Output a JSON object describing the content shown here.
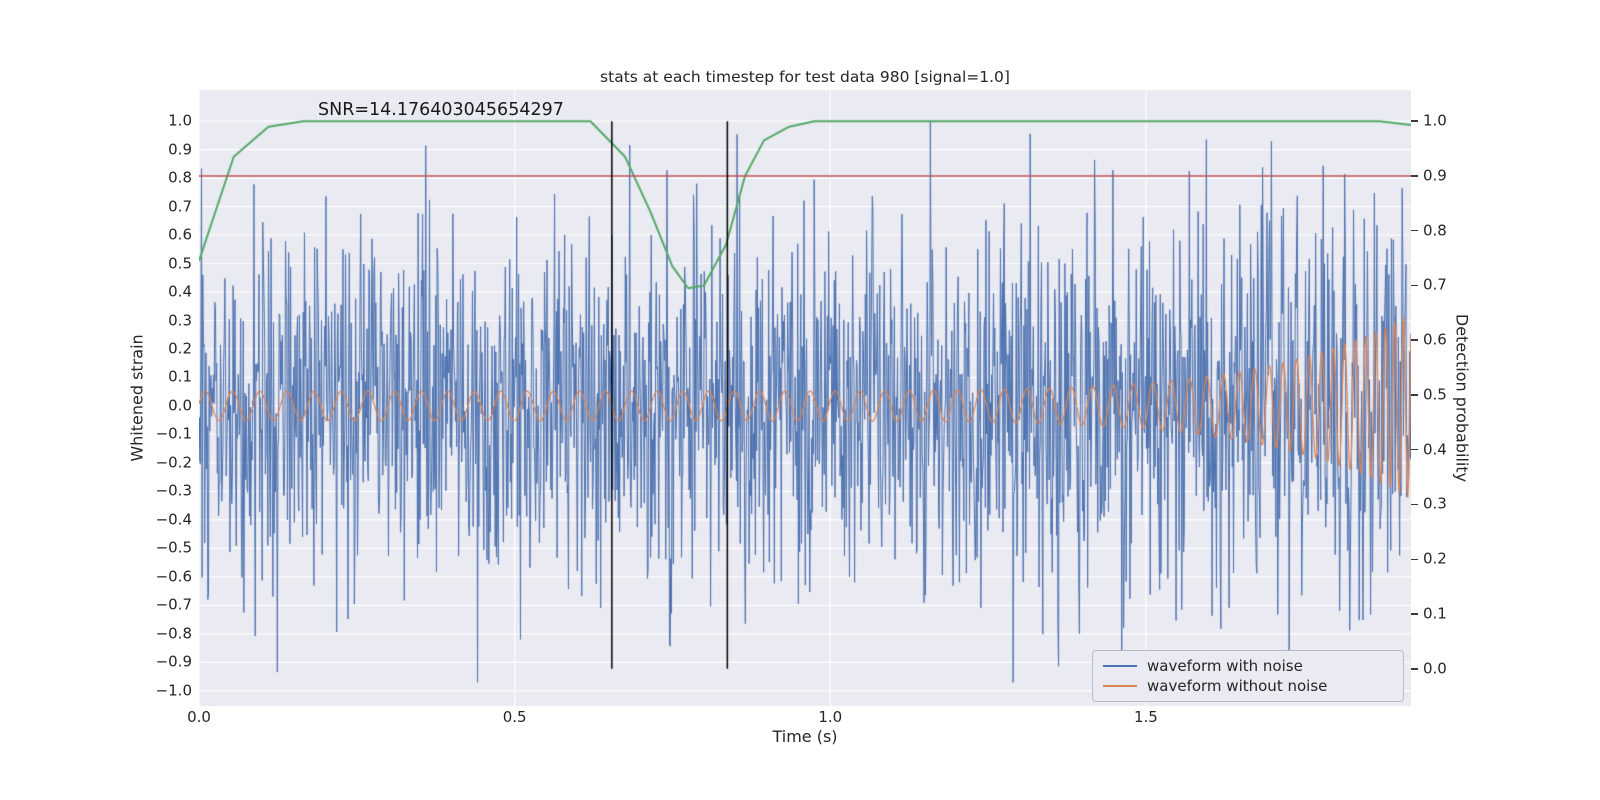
{
  "chart_data": {
    "type": "line",
    "title": "stats at each timestep for test data 980 [signal=1.0]",
    "xlabel": "Time (s)",
    "ylabel_left": "Whitened strain",
    "ylabel_right": "Detection probability",
    "annotation": {
      "text": "SNR=14.176403045654297",
      "t": 0.19,
      "strain": 1.0
    },
    "x_range": [
      0,
      1.92
    ],
    "left_ylim": [
      -1.053,
      1.109
    ],
    "right_ylim": [
      -0.068,
      1.057
    ],
    "x_ticks": {
      "values": [
        0.0,
        0.5,
        1.0,
        1.5
      ],
      "labels": [
        "0.0",
        "0.5",
        "1.0",
        "1.5"
      ]
    },
    "left_ticks": {
      "values": [
        1.0,
        0.9,
        0.8,
        0.7,
        0.6,
        0.5,
        0.4,
        0.3,
        0.2,
        0.1,
        0.0,
        -0.1,
        -0.2,
        -0.3,
        -0.4,
        -0.5,
        -0.6,
        -0.7,
        -0.8,
        -0.9,
        -1.0
      ],
      "labels": [
        "1.0",
        "0.9",
        "0.8",
        "0.7",
        "0.6",
        "0.5",
        "0.4",
        "0.3",
        "0.2",
        "0.1",
        "0.0",
        "−0.1",
        "−0.2",
        "−0.3",
        "−0.4",
        "−0.5",
        "−0.6",
        "−0.7",
        "−0.8",
        "−0.9",
        "−1.0"
      ]
    },
    "right_ticks": {
      "values": [
        1.0,
        0.9,
        0.8,
        0.7,
        0.6,
        0.5,
        0.4,
        0.3,
        0.2,
        0.1,
        0.0
      ],
      "labels": [
        "1.0",
        "0.9",
        "0.8",
        "0.7",
        "0.6",
        "0.5",
        "0.4",
        "0.3",
        "0.2",
        "0.1",
        "0.0"
      ]
    },
    "grid": {
      "color": "#ffffff",
      "on": true,
      "horizontal_axis": "left"
    },
    "colors": {
      "noise_waveform": "#4C72B0",
      "clean_waveform": "#DD8452",
      "detection_probability": "#55A868",
      "threshold": "#C44E52",
      "vline": "#000000",
      "axes_background": "#EAEAF2",
      "text": "#262626"
    },
    "threshold": {
      "axis": "right",
      "value": 0.9
    },
    "vlines": [
      0.654,
      0.837
    ],
    "detection_probability": {
      "axis": "right",
      "points": [
        [
          0.0,
          0.745
        ],
        [
          0.055,
          0.935
        ],
        [
          0.11,
          0.99
        ],
        [
          0.165,
          1.0
        ],
        [
          0.62,
          1.0
        ],
        [
          0.675,
          0.935
        ],
        [
          0.715,
          0.835
        ],
        [
          0.75,
          0.735
        ],
        [
          0.775,
          0.695
        ],
        [
          0.8,
          0.7
        ],
        [
          0.835,
          0.775
        ],
        [
          0.865,
          0.9
        ],
        [
          0.895,
          0.965
        ],
        [
          0.935,
          0.99
        ],
        [
          0.975,
          1.0
        ],
        [
          1.87,
          1.0
        ],
        [
          1.92,
          0.993
        ]
      ]
    },
    "waveform_with_noise": {
      "axis": "left",
      "n_samples": 1920,
      "seed": 980,
      "noise_std": 0.32,
      "includes_signal": true,
      "clip": [
        -0.97,
        1.0
      ]
    },
    "waveform_without_noise": {
      "axis": "left",
      "base_amplitude": 0.052,
      "amplitude_growth": 5.3,
      "amplitude_power": 9,
      "f0_hz": 23,
      "f_slope_hz_per_s": 2,
      "f_chirp_hz": 48,
      "chirp_power": 8
    },
    "legend": {
      "loc": "lower right",
      "entries": [
        {
          "label": "waveform with noise",
          "color": "#4C72B0"
        },
        {
          "label": "waveform without noise",
          "color": "#DD8452"
        }
      ]
    }
  }
}
